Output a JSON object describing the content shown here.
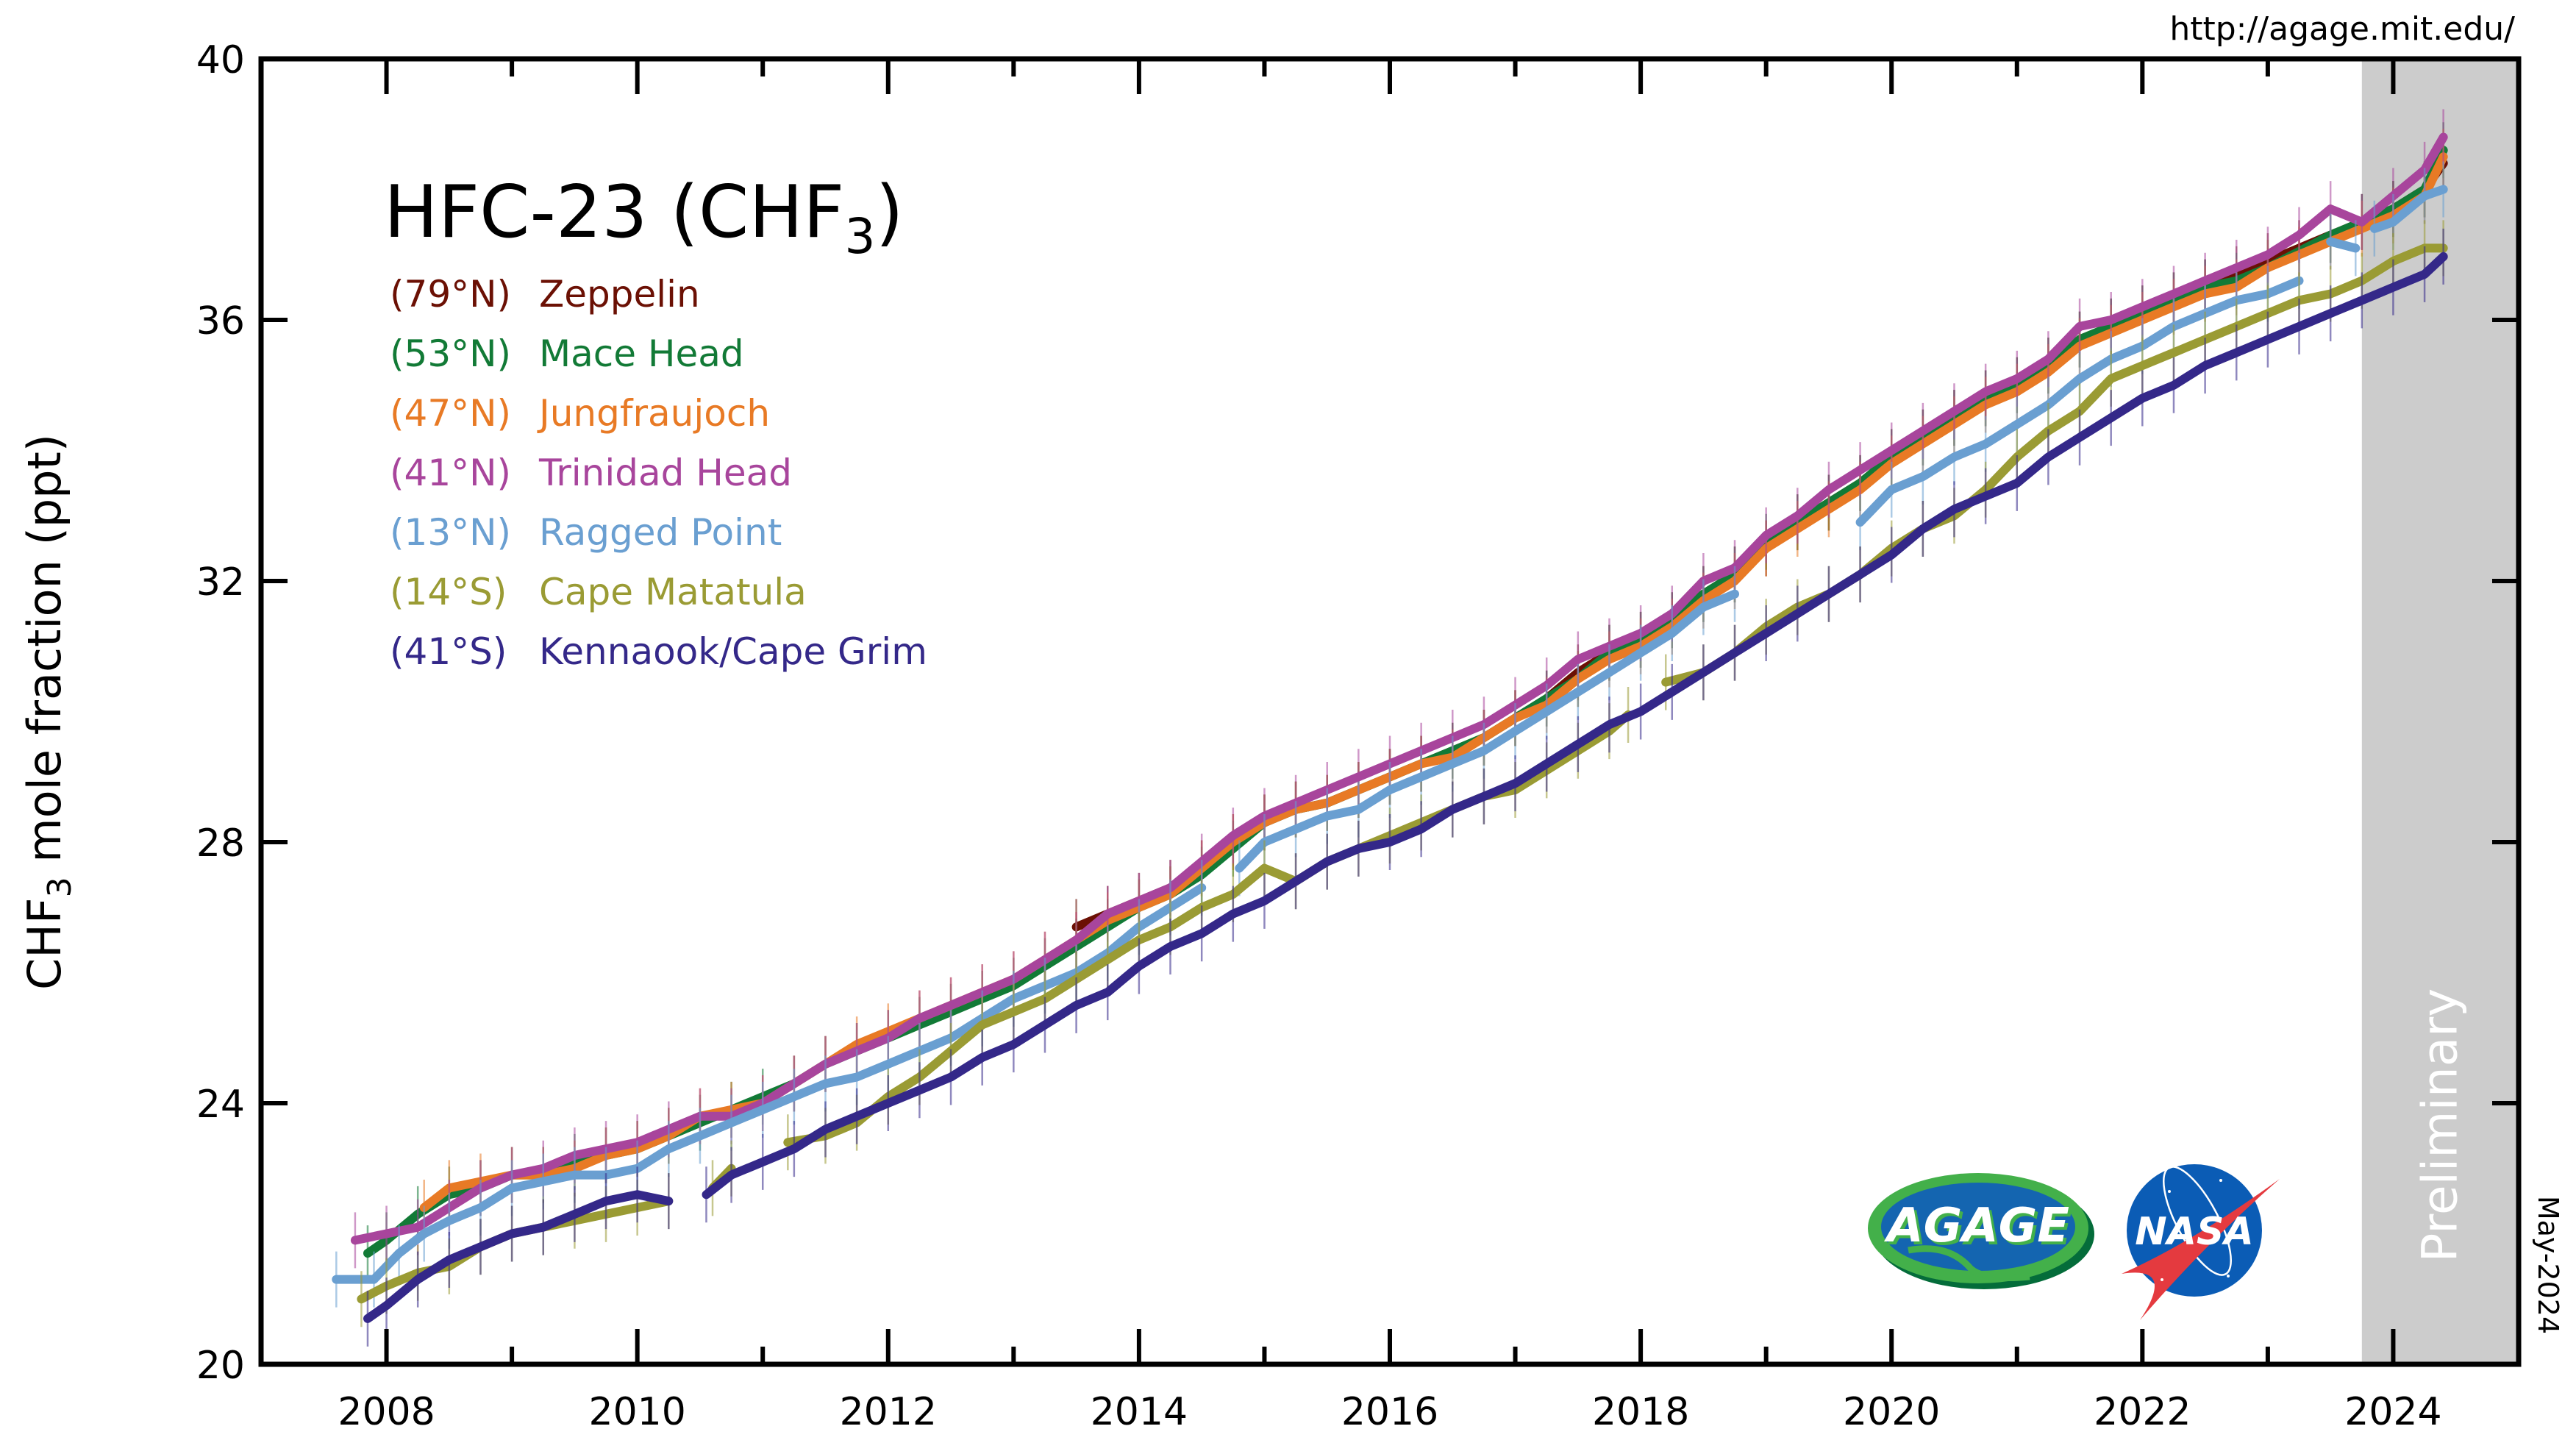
{
  "chart_data": {
    "type": "line",
    "title": "HFC-23 (CHF",
    "title_subscript": "3",
    "title_close": ")",
    "ylabel": "CHF",
    "ylabel_subscript": "3",
    "ylabel_rest": " mole fraction (ppt)",
    "xlabel": "",
    "xlim": [
      2007.0,
      2025.0
    ],
    "ylim": [
      20,
      40
    ],
    "x_ticks": [
      2008,
      2010,
      2012,
      2014,
      2016,
      2018,
      2020,
      2022,
      2024
    ],
    "x_minor_ticks": [
      2009,
      2011,
      2013,
      2015,
      2017,
      2019,
      2021,
      2023
    ],
    "y_ticks": [
      20,
      24,
      28,
      32,
      36,
      40
    ],
    "grid": false,
    "legend_position": "top-left",
    "preliminary_region": {
      "start": 2023.75,
      "end": 2025.0,
      "label": "Preliminary",
      "color": "#cccccc"
    },
    "source_url": "http://agage.mit.edu/",
    "date_stamp": "May-2024",
    "logos": {
      "agage": "AGAGE",
      "nasa": "NASA"
    },
    "series": [
      {
        "name": "Zeppelin",
        "lat": "(79°N)",
        "color": "#6b1004",
        "x": [
          2013.5,
          2013.75,
          2014.0,
          2014.25,
          2014.5,
          2014.75,
          2015.0,
          2015.25,
          2015.5,
          2015.75,
          2016.0,
          2016.25,
          2016.5,
          2016.75,
          2017.0,
          2017.25,
          2017.5,
          2017.75,
          2018.0,
          2018.25,
          2018.5,
          2018.75,
          2019.0,
          2019.25,
          2019.5,
          2019.75,
          2020.0,
          2020.25,
          2020.5,
          2020.75,
          2021.0,
          2021.25,
          2021.5,
          2021.75,
          2022.0,
          2022.25,
          2022.5,
          2022.75,
          2023.0,
          2023.25,
          2023.5,
          2023.75,
          2024.0,
          2024.25,
          2024.4
        ],
        "values": [
          26.7,
          26.9,
          27.1,
          27.3,
          27.6,
          28.0,
          28.3,
          28.5,
          28.6,
          28.8,
          29.0,
          29.2,
          29.4,
          29.6,
          29.9,
          30.2,
          30.6,
          30.9,
          31.1,
          31.4,
          31.8,
          32.1,
          32.5,
          32.9,
          33.2,
          33.5,
          33.9,
          34.2,
          34.5,
          34.8,
          35.0,
          35.3,
          35.7,
          35.9,
          36.1,
          36.3,
          36.5,
          36.7,
          36.9,
          37.1,
          37.3,
          37.5,
          37.7,
          38.0,
          38.4
        ]
      },
      {
        "name": "Mace Head",
        "lat": "(53°N)",
        "color": "#127a36",
        "x": [
          2007.85,
          2008.0,
          2008.25,
          2008.5,
          2008.75,
          2009.0,
          2009.25,
          2009.5,
          2009.75,
          2010.0,
          2010.25,
          2010.5,
          2010.75,
          2011.0,
          2011.25,
          2011.5,
          2011.75,
          2012.0,
          2012.25,
          2012.5,
          2012.75,
          2013.0,
          2013.25,
          2013.5,
          2013.75,
          2014.0,
          2014.25,
          2014.5,
          2014.75,
          2015.0,
          2015.25,
          2015.5,
          2015.75,
          2016.0,
          2016.25,
          2016.5,
          2016.75,
          2017.0,
          2017.25,
          2017.5,
          2017.75,
          2018.0,
          2018.25,
          2018.5,
          2018.75,
          2019.0,
          2019.25,
          2019.5,
          2019.75,
          2020.0,
          2020.25,
          2020.5,
          2020.75,
          2021.0,
          2021.25,
          2021.5,
          2021.75,
          2022.0,
          2022.25,
          2022.5,
          2022.75,
          2023.0,
          2023.5,
          2023.75,
          2024.0,
          2024.25,
          2024.4
        ],
        "values": [
          21.7,
          21.9,
          22.3,
          22.6,
          22.7,
          22.9,
          22.9,
          23.1,
          23.2,
          23.3,
          23.5,
          23.7,
          23.9,
          24.1,
          24.3,
          24.6,
          24.8,
          25.0,
          25.2,
          25.4,
          25.6,
          25.8,
          26.1,
          26.4,
          26.7,
          27.0,
          27.2,
          27.5,
          27.9,
          28.3,
          28.5,
          28.6,
          28.8,
          29.0,
          29.2,
          29.4,
          29.6,
          29.9,
          30.2,
          30.5,
          30.9,
          31.1,
          31.4,
          31.8,
          32.1,
          32.6,
          32.9,
          33.2,
          33.5,
          33.9,
          34.2,
          34.5,
          34.8,
          35.0,
          35.3,
          35.7,
          35.9,
          36.1,
          36.3,
          36.5,
          36.6,
          36.8,
          37.3,
          37.5,
          37.7,
          38.0,
          38.6
        ]
      },
      {
        "name": "Jungfraujoch",
        "lat": "(47°N)",
        "color": "#e87a25",
        "x": [
          2008.3,
          2008.5,
          2008.75,
          2009.0,
          2009.25,
          2009.5,
          2009.75,
          2010.0,
          2010.25,
          2010.5,
          2010.75,
          2011.0,
          2011.25,
          2011.5,
          2011.75,
          2012.0,
          2012.25,
          2012.5,
          2012.75,
          2013.0,
          2013.25,
          2013.5,
          2013.75,
          2014.0,
          2014.25,
          2014.5,
          2014.75,
          2015.0,
          2015.25,
          2015.5,
          2015.75,
          2016.0,
          2016.25,
          2016.5,
          2016.75,
          2017.0,
          2017.25,
          2017.5,
          2017.75,
          2018.0,
          2018.25,
          2018.5,
          2018.75,
          2019.0,
          2019.25,
          2019.5,
          2019.75,
          2020.0,
          2020.25,
          2020.5,
          2020.75,
          2021.0,
          2021.25,
          2021.5,
          2021.75,
          2022.0,
          2022.25,
          2022.5,
          2022.75,
          2023.0,
          2023.25,
          2023.5,
          2023.75,
          2024.0,
          2024.25,
          2024.4
        ],
        "values": [
          22.4,
          22.7,
          22.8,
          22.9,
          22.9,
          23.0,
          23.2,
          23.3,
          23.5,
          23.8,
          23.9,
          24.0,
          24.3,
          24.6,
          24.9,
          25.1,
          25.3,
          25.5,
          25.7,
          25.9,
          26.2,
          26.5,
          26.8,
          27.0,
          27.2,
          27.6,
          28.0,
          28.3,
          28.5,
          28.6,
          28.8,
          29.0,
          29.2,
          29.3,
          29.6,
          29.9,
          30.1,
          30.5,
          30.8,
          31.0,
          31.3,
          31.7,
          32.0,
          32.5,
          32.8,
          33.1,
          33.4,
          33.8,
          34.1,
          34.4,
          34.7,
          34.9,
          35.2,
          35.6,
          35.8,
          36.0,
          36.2,
          36.4,
          36.5,
          36.8,
          37.0,
          37.2,
          37.4,
          37.6,
          37.9,
          38.5
        ]
      },
      {
        "name": "Trinidad Head",
        "lat": "(41°N)",
        "color": "#a8459c",
        "x": [
          2007.75,
          2008.0,
          2008.25,
          2008.5,
          2008.75,
          2009.0,
          2009.25,
          2009.5,
          2009.75,
          2010.0,
          2010.25,
          2010.5,
          2010.75,
          2011.0,
          2011.25,
          2011.5,
          2011.75,
          2012.0,
          2012.25,
          2012.5,
          2012.75,
          2013.0,
          2013.25,
          2013.5,
          2013.75,
          2014.0,
          2014.25,
          2014.5,
          2014.75,
          2015.0,
          2015.25,
          2015.5,
          2015.75,
          2016.0,
          2016.25,
          2016.5,
          2016.75,
          2017.0,
          2017.25,
          2017.5,
          2017.75,
          2018.0,
          2018.25,
          2018.5,
          2018.75,
          2019.0,
          2019.25,
          2019.5,
          2019.75,
          2020.0,
          2020.25,
          2020.5,
          2020.75,
          2021.0,
          2021.25,
          2021.5,
          2021.75,
          2022.0,
          2022.25,
          2022.5,
          2022.75,
          2023.0,
          2023.25,
          2023.5,
          2023.75,
          2024.0,
          2024.25,
          2024.4
        ],
        "values": [
          21.9,
          22.0,
          22.1,
          22.4,
          22.7,
          22.9,
          23.0,
          23.2,
          23.3,
          23.4,
          23.6,
          23.8,
          23.8,
          24.0,
          24.3,
          24.6,
          24.8,
          25.0,
          25.3,
          25.5,
          25.7,
          25.9,
          26.2,
          26.5,
          26.9,
          27.1,
          27.3,
          27.7,
          28.1,
          28.4,
          28.6,
          28.8,
          29.0,
          29.2,
          29.4,
          29.6,
          29.8,
          30.1,
          30.4,
          30.8,
          31.0,
          31.2,
          31.5,
          32.0,
          32.2,
          32.7,
          33.0,
          33.4,
          33.7,
          34.0,
          34.3,
          34.6,
          34.9,
          35.1,
          35.4,
          35.9,
          36.0,
          36.2,
          36.4,
          36.6,
          36.8,
          37.0,
          37.3,
          37.7,
          37.5,
          37.9,
          38.3,
          38.8
        ]
      },
      {
        "name": "Ragged Point",
        "lat": "(13°N)",
        "color": "#6a9fd1",
        "x": [
          2007.6,
          2007.9,
          2008.1,
          2008.3,
          2008.5,
          2008.75,
          2009.0,
          2009.25,
          2009.5,
          2009.75,
          2010.0,
          2010.25,
          2010.5,
          2010.75,
          2011.0,
          2011.25,
          2011.5,
          2011.75,
          2012.0,
          2012.25,
          2012.5,
          2012.75,
          2013.0,
          2013.25,
          2013.5,
          2013.75,
          2014.0,
          2014.25,
          2014.5,
          null,
          2014.8,
          2015.0,
          2015.25,
          2015.5,
          2015.75,
          2016.0,
          2016.25,
          2016.5,
          2016.75,
          2017.0,
          2017.25,
          2017.5,
          2017.75,
          2018.0,
          2018.25,
          2018.5,
          2018.75,
          null,
          2019.75,
          2020.0,
          2020.25,
          2020.5,
          2020.75,
          2021.0,
          2021.25,
          2021.5,
          2021.75,
          2022.0,
          2022.25,
          2022.5,
          2022.75,
          2023.0,
          2023.25,
          null,
          2023.5,
          2023.7,
          null,
          2023.85,
          2024.0,
          2024.25,
          2024.4
        ],
        "values": [
          21.3,
          21.3,
          21.7,
          22.0,
          22.2,
          22.4,
          22.7,
          22.8,
          22.9,
          22.9,
          23.0,
          23.3,
          23.5,
          23.7,
          23.9,
          24.1,
          24.3,
          24.4,
          24.6,
          24.8,
          25.0,
          25.3,
          25.6,
          25.8,
          26.0,
          26.3,
          26.7,
          27.0,
          27.3,
          null,
          27.6,
          28.0,
          28.2,
          28.4,
          28.5,
          28.8,
          29.0,
          29.2,
          29.4,
          29.7,
          30.0,
          30.3,
          30.6,
          30.9,
          31.2,
          31.6,
          31.8,
          null,
          32.9,
          33.4,
          33.6,
          33.9,
          34.1,
          34.4,
          34.7,
          35.1,
          35.4,
          35.6,
          35.9,
          36.1,
          36.3,
          36.4,
          36.6,
          null,
          37.2,
          37.1,
          null,
          37.4,
          37.5,
          37.9,
          38.0
        ]
      },
      {
        "name": "Cape Matatula",
        "lat": "(14°S)",
        "color": "#9a9b34",
        "x": [
          2007.8,
          2008.0,
          2008.25,
          2008.5,
          2008.75,
          2009.0,
          2009.25,
          2009.5,
          2009.75,
          2010.0,
          2010.25,
          null,
          2010.6,
          2010.75,
          null,
          2011.2,
          2011.5,
          2011.75,
          2012.0,
          2012.25,
          2012.5,
          2012.75,
          2013.0,
          2013.25,
          2013.5,
          2013.75,
          2014.0,
          2014.25,
          2014.5,
          2014.75,
          2015.0,
          2015.25,
          2015.5,
          2015.75,
          2016.0,
          2016.25,
          2016.5,
          2016.75,
          2017.0,
          2017.25,
          2017.5,
          2017.75,
          2017.9,
          null,
          2018.2,
          2018.5,
          2018.75,
          2019.0,
          2019.25,
          2019.5,
          2019.75,
          2020.0,
          2020.25,
          2020.5,
          2020.75,
          2021.0,
          2021.25,
          2021.5,
          2021.75,
          2022.0,
          2022.25,
          2022.5,
          2022.75,
          2023.0,
          2023.25,
          2023.5,
          2023.75,
          2024.0,
          2024.25,
          2024.4
        ],
        "values": [
          21.0,
          21.2,
          21.4,
          21.5,
          21.8,
          22.0,
          22.1,
          22.2,
          22.3,
          22.4,
          22.5,
          null,
          22.7,
          23.0,
          null,
          23.4,
          23.5,
          23.7,
          24.1,
          24.4,
          24.8,
          25.2,
          25.4,
          25.6,
          25.9,
          26.2,
          26.5,
          26.7,
          27.0,
          27.2,
          27.6,
          27.4,
          27.7,
          27.9,
          28.1,
          28.3,
          28.5,
          28.7,
          28.8,
          29.1,
          29.4,
          29.7,
          29.95,
          null,
          30.45,
          30.6,
          30.9,
          31.3,
          31.6,
          31.8,
          32.1,
          32.5,
          32.8,
          33.0,
          33.4,
          33.9,
          34.3,
          34.6,
          35.1,
          35.3,
          35.5,
          35.7,
          35.9,
          36.1,
          36.3,
          36.4,
          36.6,
          36.9,
          37.1,
          37.1
        ]
      },
      {
        "name": "Kennaook/Cape Grim",
        "lat": "(41°S)",
        "color": "#342889",
        "x": [
          2007.85,
          2008.0,
          2008.25,
          2008.5,
          2008.75,
          2009.0,
          2009.25,
          2009.5,
          2009.75,
          2010.0,
          2010.25,
          null,
          2010.55,
          2010.75,
          2011.0,
          2011.25,
          2011.5,
          2011.75,
          2012.0,
          2012.25,
          2012.5,
          2012.75,
          2013.0,
          2013.25,
          2013.5,
          2013.75,
          2014.0,
          2014.25,
          2014.5,
          2014.75,
          2015.0,
          2015.25,
          2015.5,
          2015.75,
          2016.0,
          2016.25,
          2016.5,
          2016.75,
          2017.0,
          2017.25,
          2017.5,
          2017.75,
          2018.0,
          2018.25,
          2018.5,
          2018.75,
          2019.0,
          2019.25,
          2019.5,
          2019.75,
          2020.0,
          2020.25,
          2020.5,
          2020.75,
          2021.0,
          2021.25,
          2021.5,
          2021.75,
          2022.0,
          2022.25,
          2022.5,
          2022.75,
          2023.0,
          2023.25,
          2023.5,
          2023.75,
          2024.0,
          2024.25,
          2024.4
        ],
        "values": [
          20.7,
          20.9,
          21.3,
          21.6,
          21.8,
          22.0,
          22.1,
          22.3,
          22.5,
          22.6,
          22.5,
          null,
          22.6,
          22.9,
          23.1,
          23.3,
          23.6,
          23.8,
          24.0,
          24.2,
          24.4,
          24.7,
          24.9,
          25.2,
          25.5,
          25.7,
          26.1,
          26.4,
          26.6,
          26.9,
          27.1,
          27.4,
          27.7,
          27.9,
          28.0,
          28.2,
          28.5,
          28.7,
          28.9,
          29.2,
          29.5,
          29.8,
          30.0,
          30.3,
          30.6,
          30.9,
          31.2,
          31.5,
          31.8,
          32.1,
          32.4,
          32.8,
          33.1,
          33.3,
          33.5,
          33.9,
          34.2,
          34.5,
          34.8,
          35.0,
          35.3,
          35.5,
          35.7,
          35.9,
          36.1,
          36.3,
          36.5,
          36.7,
          36.97
        ]
      }
    ]
  }
}
